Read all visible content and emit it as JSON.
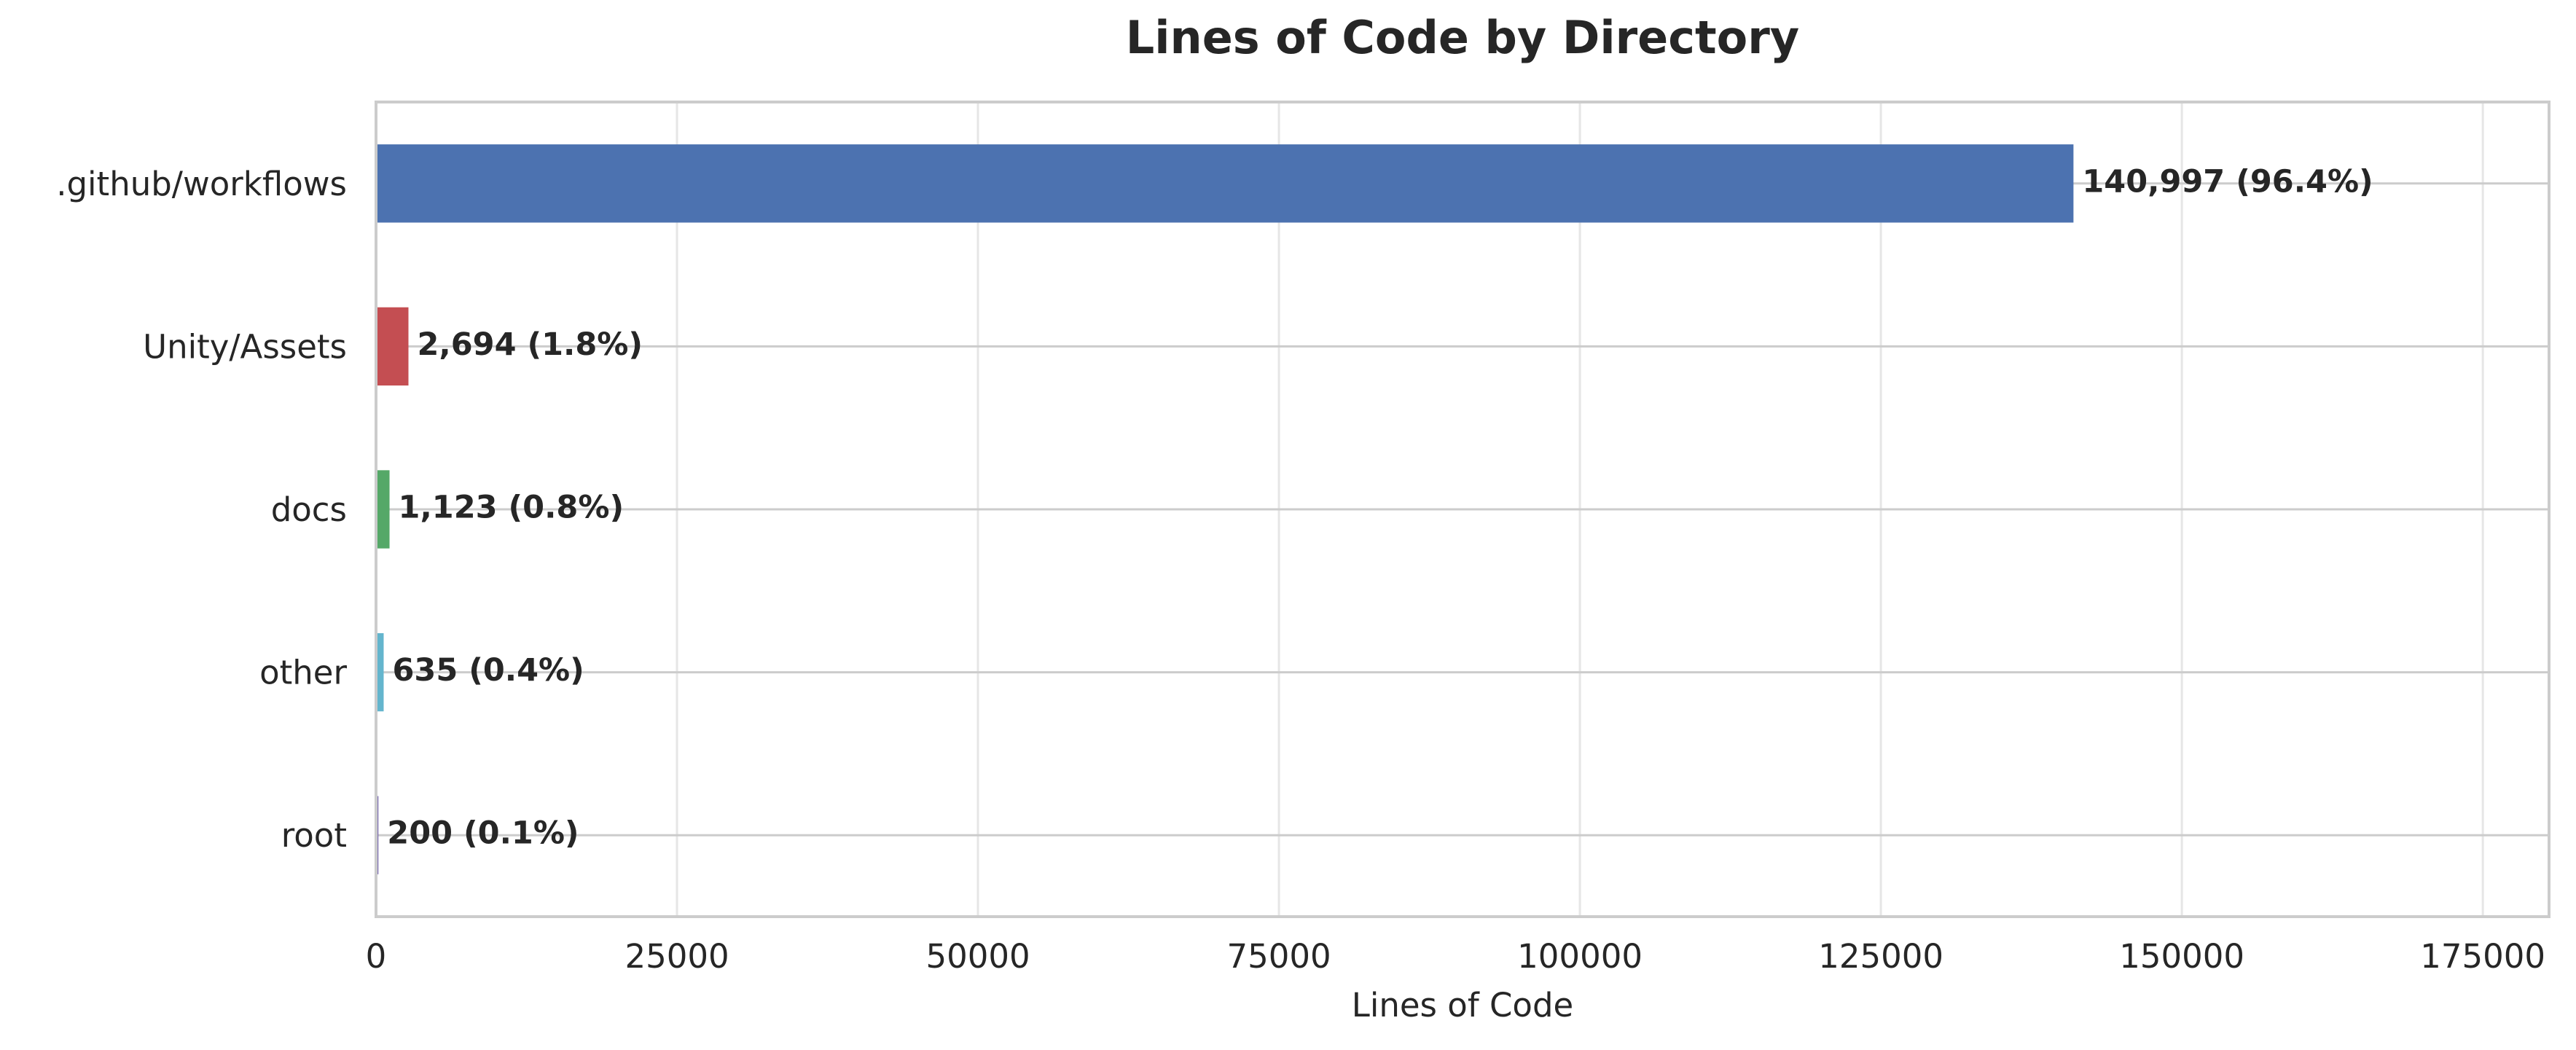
{
  "chart_data": {
    "type": "barh",
    "title": "Lines of Code by Directory",
    "x_label": "Lines of Code",
    "categories": [
      ".github/workflows",
      "Unity/Assets",
      "docs",
      "other",
      "root"
    ],
    "values": [
      140997,
      2694,
      1123,
      635,
      200
    ],
    "value_labels": [
      "140,997 (96.4%)",
      "2,694 (1.8%)",
      "1,123 (0.8%)",
      "635 (0.4%)",
      "200 (0.1%)"
    ],
    "colors": [
      "#4c72b0",
      "#c44e52",
      "#55a868",
      "#64b5cd",
      "#8172b3"
    ],
    "xlim": [
      0,
      180500
    ],
    "xticks": [
      0,
      25000,
      50000,
      75000,
      100000,
      125000,
      150000,
      175000
    ],
    "grid": true
  }
}
